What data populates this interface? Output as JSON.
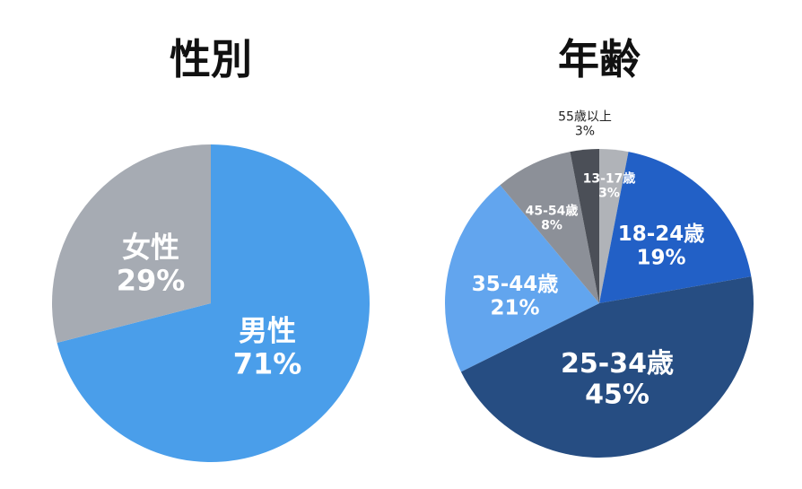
{
  "chart_data": [
    {
      "type": "pie",
      "title": "性別",
      "slices": [
        {
          "label": "男性",
          "value": 71,
          "pct_label": "71%",
          "color": "#4a9eea"
        },
        {
          "label": "女性",
          "value": 29,
          "pct_label": "29%",
          "color": "#a6abb3"
        }
      ]
    },
    {
      "type": "pie",
      "title": "年齢",
      "slices": [
        {
          "label": "13-17歳",
          "value": 3,
          "pct_label": "3%",
          "color": "#b0b3b8"
        },
        {
          "label": "18-24歳",
          "value": 19,
          "pct_label": "19%",
          "color": "#2260c6"
        },
        {
          "label": "25-34歳",
          "value": 45,
          "pct_label": "45%",
          "color": "#264d82"
        },
        {
          "label": "35-44歳",
          "value": 21,
          "pct_label": "21%",
          "color": "#62a5ee"
        },
        {
          "label": "45-54歳",
          "value": 8,
          "pct_label": "8%",
          "color": "#8c9098"
        },
        {
          "label": "55歳以上",
          "value": 3,
          "pct_label": "3%",
          "color": "#4b4f57"
        }
      ]
    }
  ]
}
